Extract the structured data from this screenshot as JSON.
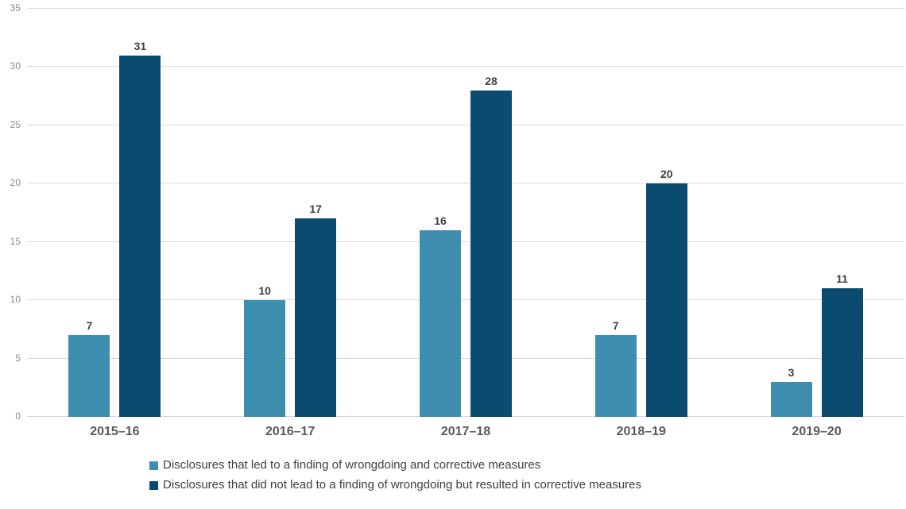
{
  "chart_data": {
    "type": "bar",
    "categories": [
      "2015–16",
      "2016–17",
      "2017–18",
      "2018–19",
      "2019–20"
    ],
    "series": [
      {
        "name": "Disclosures that led to a finding of wrongdoing and corrective measures",
        "color": "#3e8eaf",
        "values": [
          7,
          10,
          16,
          7,
          3
        ]
      },
      {
        "name": "Disclosures that did not lead to a finding of wrongdoing but resulted in corrective measures",
        "color": "#0c4b70",
        "values": [
          31,
          17,
          28,
          20,
          11
        ]
      }
    ],
    "title": "",
    "xlabel": "",
    "ylabel": "",
    "ylim": [
      0,
      35
    ],
    "yticks": [
      0,
      5,
      10,
      15,
      20,
      25,
      30,
      35
    ],
    "grid": "horizontal",
    "legend_position": "bottom-left"
  },
  "colors": {
    "gridline": "#d9d9d9",
    "tick_label": "#8c8c8c",
    "category_label": "#595959",
    "value_label": "#404040",
    "legend_text": "#404040"
  }
}
